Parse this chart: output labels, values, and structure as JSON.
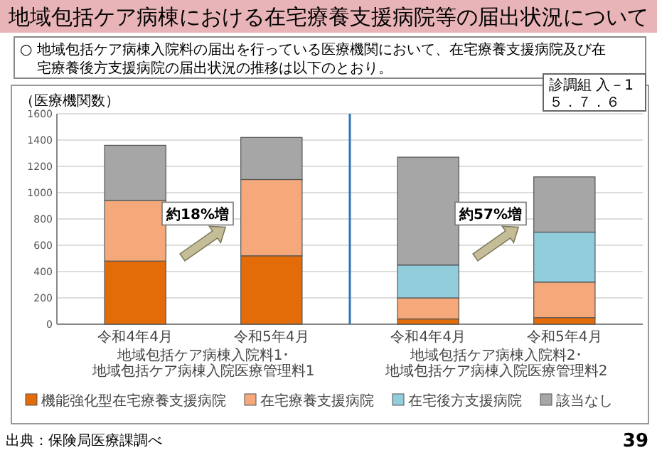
{
  "chart_data": [
    {
      "type": "bar",
      "stacked": true,
      "title": "地域包括ケア病棟における在宅療養支援病院等の届出状況について",
      "subtitle": "○ 地域包括ケア病棟入院料の届出を行っている医療機関において、在宅療養支援病院及び在宅療養後方支援病院の届出状況の推移は以下のとおり。",
      "ylabel": "（医療機関数）",
      "xlabel": "地域包括ケア病棟入院料1･地域包括ケア病棟入院医療管理料1",
      "categories": [
        "令和4年4月",
        "令和5年4月"
      ],
      "series": [
        {
          "color": "#e36c09",
          "values": [
            480,
            520
          ]
        },
        {
          "color": "#f5a97a",
          "values": [
            460,
            580
          ]
        },
        {
          "color": "#a6a6a6",
          "values": [
            420,
            320
          ]
        }
      ],
      "ylim": [
        0,
        1600
      ],
      "yticks": [
        0,
        200,
        400,
        600,
        800,
        1000,
        1200,
        1400,
        1600
      ],
      "grid": "y",
      "annotations": [
        "約18%増",
        "診調組 入－1",
        "５．７．６",
        "出典：保険局医療課調べ",
        "39"
      ]
    },
    {
      "type": "bar",
      "stacked": true,
      "xlabel": "地域包括ケア病棟入院料2･地域包括ケア病棟入院医療管理料2",
      "categories": [
        "令和4年4月",
        "令和5年4月"
      ],
      "series": [
        {
          "name": "機能強化型在宅療養支援病院",
          "color": "#e36c09",
          "values": [
            40,
            50
          ]
        },
        {
          "name": "在宅療養支援病院",
          "color": "#f5a97a",
          "values": [
            160,
            270
          ]
        },
        {
          "name": "在宅後方支援病院",
          "color": "#92cddc",
          "values": [
            250,
            380
          ]
        },
        {
          "name": "該当なし",
          "color": "#a6a6a6",
          "values": [
            820,
            420
          ]
        }
      ],
      "ylim": [
        0,
        1600
      ],
      "yticks": [
        0,
        200,
        400,
        600,
        800,
        1000,
        1200,
        1400,
        1600
      ],
      "grid": "y",
      "tick_labels": "x",
      "legend": "bottom",
      "annotations": [
        "約57%増"
      ]
    }
  ]
}
